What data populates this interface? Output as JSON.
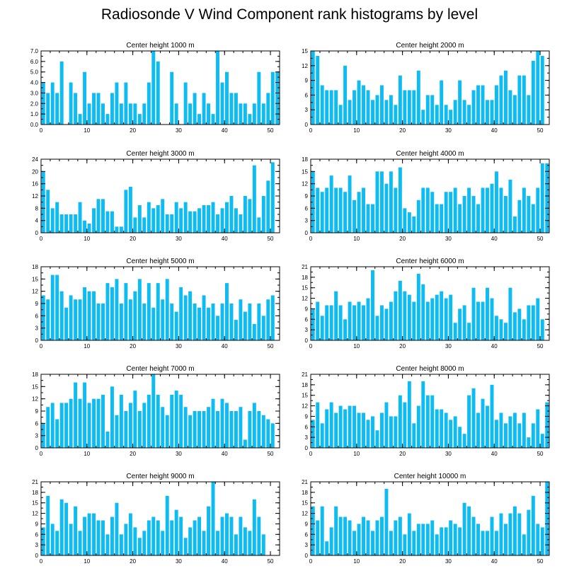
{
  "title": "Radiosonde V Wind Component rank histograms by level",
  "bar_color": "#0cbcf2",
  "chart_data": [
    {
      "type": "bar",
      "title": "Center height 1000 m",
      "xlim": [
        0,
        52
      ],
      "ylim": [
        0,
        7
      ],
      "xticks": [
        "0",
        "10",
        "20",
        "30",
        "40",
        "50"
      ],
      "yticks": [
        "0.0",
        "1.0",
        "2.0",
        "3.0",
        "4.0",
        "5.0",
        "6.0",
        "7.0"
      ],
      "values": [
        4,
        3,
        4,
        3,
        6,
        0,
        4,
        3,
        1,
        5,
        2,
        3,
        3,
        2,
        1,
        3,
        4,
        2,
        4,
        2,
        2,
        1,
        2,
        4,
        7,
        6,
        0,
        0,
        5,
        2,
        0,
        4,
        2,
        3,
        1,
        3,
        2,
        1,
        7,
        4,
        5,
        3,
        3,
        2,
        2,
        1,
        2,
        5,
        2,
        3,
        5,
        5
      ]
    },
    {
      "type": "bar",
      "title": "Center height 2000 m",
      "xlim": [
        0,
        52
      ],
      "ylim": [
        0,
        15
      ],
      "xticks": [
        "0",
        "10",
        "20",
        "30",
        "40",
        "50"
      ],
      "yticks": [
        "0",
        "3",
        "6",
        "9",
        "12",
        "15"
      ],
      "values": [
        15,
        14,
        8,
        7,
        7,
        7,
        4,
        12,
        5,
        7,
        9,
        8,
        7,
        5,
        6,
        8,
        5,
        6,
        4,
        10,
        7,
        7,
        7,
        11,
        3,
        6,
        6,
        4,
        9,
        4,
        3,
        5,
        9,
        5,
        4,
        7,
        8,
        8,
        5,
        5,
        8,
        10,
        11,
        7,
        6,
        10,
        10,
        6,
        13,
        15,
        14,
        0
      ]
    },
    {
      "type": "bar",
      "title": "Center height 3000 m",
      "xlim": [
        0,
        52
      ],
      "ylim": [
        0,
        24
      ],
      "xticks": [
        "0",
        "10",
        "20",
        "30",
        "40",
        "50"
      ],
      "yticks": [
        "0",
        "4",
        "8",
        "12",
        "16",
        "20",
        "24"
      ],
      "values": [
        20,
        14,
        8,
        10,
        6,
        6,
        6,
        6,
        10,
        4,
        3,
        8,
        11,
        11,
        7,
        7,
        2,
        2,
        14,
        15,
        5,
        9,
        5,
        10,
        8,
        9,
        11,
        6,
        6,
        10,
        8,
        10,
        7,
        7,
        8,
        9,
        9,
        10,
        6,
        8,
        10,
        12,
        8,
        6,
        12,
        11,
        22,
        5,
        12,
        17,
        23,
        0
      ]
    },
    {
      "type": "bar",
      "title": "Center height 4000 m",
      "xlim": [
        0,
        52
      ],
      "ylim": [
        0,
        18
      ],
      "xticks": [
        "0",
        "10",
        "20",
        "30",
        "40",
        "50"
      ],
      "yticks": [
        "0",
        "3",
        "6",
        "9",
        "12",
        "15",
        "18"
      ],
      "values": [
        15,
        11,
        10,
        11,
        14,
        11,
        11,
        10,
        14,
        8,
        10,
        11,
        7,
        7,
        15,
        15,
        12,
        15,
        11,
        16,
        6,
        5,
        4,
        8,
        11,
        11,
        10,
        7,
        7,
        10,
        10,
        11,
        7,
        9,
        11,
        9,
        7,
        11,
        11,
        12,
        15,
        11,
        9,
        13,
        4,
        8,
        11,
        9,
        7,
        11,
        17,
        17
      ]
    },
    {
      "type": "bar",
      "title": "Center height 5000 m",
      "xlim": [
        0,
        52
      ],
      "ylim": [
        0,
        18
      ],
      "xticks": [
        "0",
        "10",
        "20",
        "30",
        "40",
        "50"
      ],
      "yticks": [
        "0",
        "3",
        "6",
        "9",
        "12",
        "15",
        "18"
      ],
      "values": [
        11,
        10,
        16,
        16,
        12,
        8,
        11,
        10,
        10,
        13,
        12,
        12,
        9,
        9,
        14,
        13,
        15,
        9,
        14,
        10,
        12,
        15,
        9,
        14,
        8,
        14,
        10,
        15,
        9,
        7,
        13,
        11,
        12,
        9,
        8,
        11,
        8,
        9,
        6,
        9,
        14,
        9,
        5,
        10,
        7,
        9,
        4,
        9,
        6,
        10,
        11,
        0
      ]
    },
    {
      "type": "bar",
      "title": "Center height 6000 m",
      "xlim": [
        0,
        52
      ],
      "ylim": [
        0,
        21
      ],
      "xticks": [
        "0",
        "10",
        "20",
        "30",
        "40",
        "50"
      ],
      "yticks": [
        "0",
        "3",
        "6",
        "9",
        "12",
        "15",
        "18",
        "21"
      ],
      "values": [
        9,
        11,
        7,
        10,
        10,
        14,
        10,
        6,
        11,
        10,
        11,
        10,
        12,
        20,
        7,
        10,
        9,
        11,
        14,
        17,
        14,
        13,
        11,
        19,
        16,
        11,
        12,
        13,
        14,
        12,
        13,
        5,
        9,
        10,
        5,
        15,
        11,
        11,
        15,
        12,
        7,
        6,
        5,
        15,
        8,
        9,
        6,
        10,
        10,
        12,
        6,
        0
      ]
    },
    {
      "type": "bar",
      "title": "Center height 7000 m",
      "xlim": [
        0,
        52
      ],
      "ylim": [
        0,
        18
      ],
      "xticks": [
        "0",
        "10",
        "20",
        "30",
        "40",
        "50"
      ],
      "yticks": [
        "0",
        "3",
        "6",
        "9",
        "12",
        "15",
        "18"
      ],
      "values": [
        6,
        10,
        11,
        7,
        11,
        11,
        12,
        16,
        12,
        16,
        11,
        12,
        12,
        13,
        4,
        15,
        8,
        13,
        9,
        11,
        14,
        9,
        11,
        13,
        18,
        13,
        10,
        8,
        13,
        14,
        13,
        10,
        8,
        9,
        9,
        9,
        10,
        12,
        9,
        12,
        11,
        9,
        9,
        10,
        2,
        9,
        11,
        9,
        8,
        7,
        6,
        0
      ]
    },
    {
      "type": "bar",
      "title": "Center height 8000 m",
      "xlim": [
        0,
        52
      ],
      "ylim": [
        0,
        21
      ],
      "xticks": [
        "0",
        "10",
        "20",
        "30",
        "40",
        "50"
      ],
      "yticks": [
        "0",
        "3",
        "6",
        "9",
        "12",
        "15",
        "18",
        "21"
      ],
      "values": [
        8,
        13,
        7,
        11,
        13,
        10,
        12,
        11,
        12,
        12,
        10,
        10,
        8,
        9,
        5,
        10,
        13,
        9,
        9,
        15,
        13,
        19,
        7,
        12,
        19,
        15,
        15,
        11,
        11,
        10,
        8,
        9,
        6,
        4,
        15,
        17,
        10,
        14,
        12,
        18,
        8,
        10,
        7,
        9,
        10,
        7,
        10,
        3,
        7,
        11,
        4,
        13
      ]
    },
    {
      "type": "bar",
      "title": "Center height 9000 m",
      "xlim": [
        0,
        52
      ],
      "ylim": [
        0,
        21
      ],
      "xticks": [
        "0",
        "10",
        "20",
        "30",
        "40",
        "50"
      ],
      "yticks": [
        "0",
        "3",
        "6",
        "9",
        "12",
        "15",
        "18",
        "21"
      ],
      "values": [
        8,
        17,
        9,
        7,
        16,
        15,
        9,
        14,
        7,
        11,
        12,
        12,
        10,
        10,
        6,
        11,
        15,
        6,
        9,
        12,
        8,
        5,
        7,
        10,
        11,
        10,
        7,
        17,
        10,
        13,
        11,
        5,
        8,
        10,
        11,
        7,
        14,
        21,
        7,
        11,
        12,
        11,
        6,
        11,
        8,
        7,
        16,
        11,
        6,
        0,
        0,
        0
      ]
    },
    {
      "type": "bar",
      "title": "Center height 10000 m",
      "xlim": [
        0,
        52
      ],
      "ylim": [
        0,
        21
      ],
      "xticks": [
        "0",
        "10",
        "20",
        "30",
        "40",
        "50"
      ],
      "yticks": [
        "0",
        "3",
        "6",
        "9",
        "12",
        "15",
        "18",
        "21"
      ],
      "values": [
        14,
        10,
        14,
        4,
        8,
        14,
        11,
        11,
        10,
        7,
        9,
        11,
        10,
        7,
        10,
        11,
        19,
        7,
        10,
        11,
        6,
        12,
        7,
        9,
        9,
        9,
        10,
        6,
        8,
        8,
        10,
        9,
        8,
        15,
        14,
        11,
        9,
        7,
        7,
        11,
        7,
        12,
        9,
        12,
        14,
        12,
        6,
        13,
        17,
        9,
        8,
        21
      ]
    }
  ]
}
